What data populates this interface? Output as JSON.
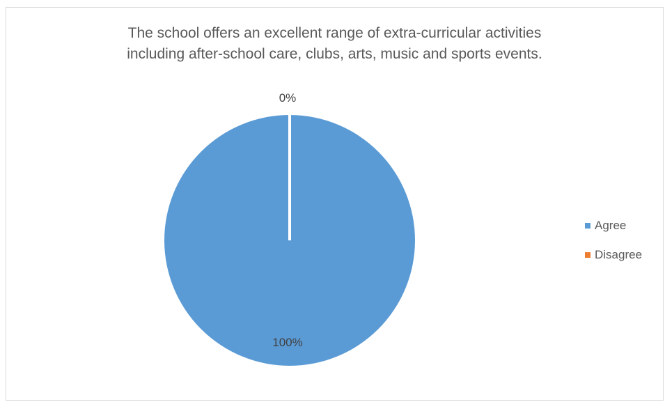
{
  "chart_data": {
    "type": "pie",
    "title_lines": [
      "The school offers an excellent range of extra-curricular activities",
      "including after-school care, clubs, arts, music and sports events."
    ],
    "categories": [
      "Agree",
      "Disagree"
    ],
    "values": [
      100,
      0
    ],
    "data_labels": [
      "100%",
      "0%"
    ],
    "colors": [
      "#5B9BD5",
      "#ED7D31"
    ],
    "legend_position": "right",
    "grid": false
  }
}
